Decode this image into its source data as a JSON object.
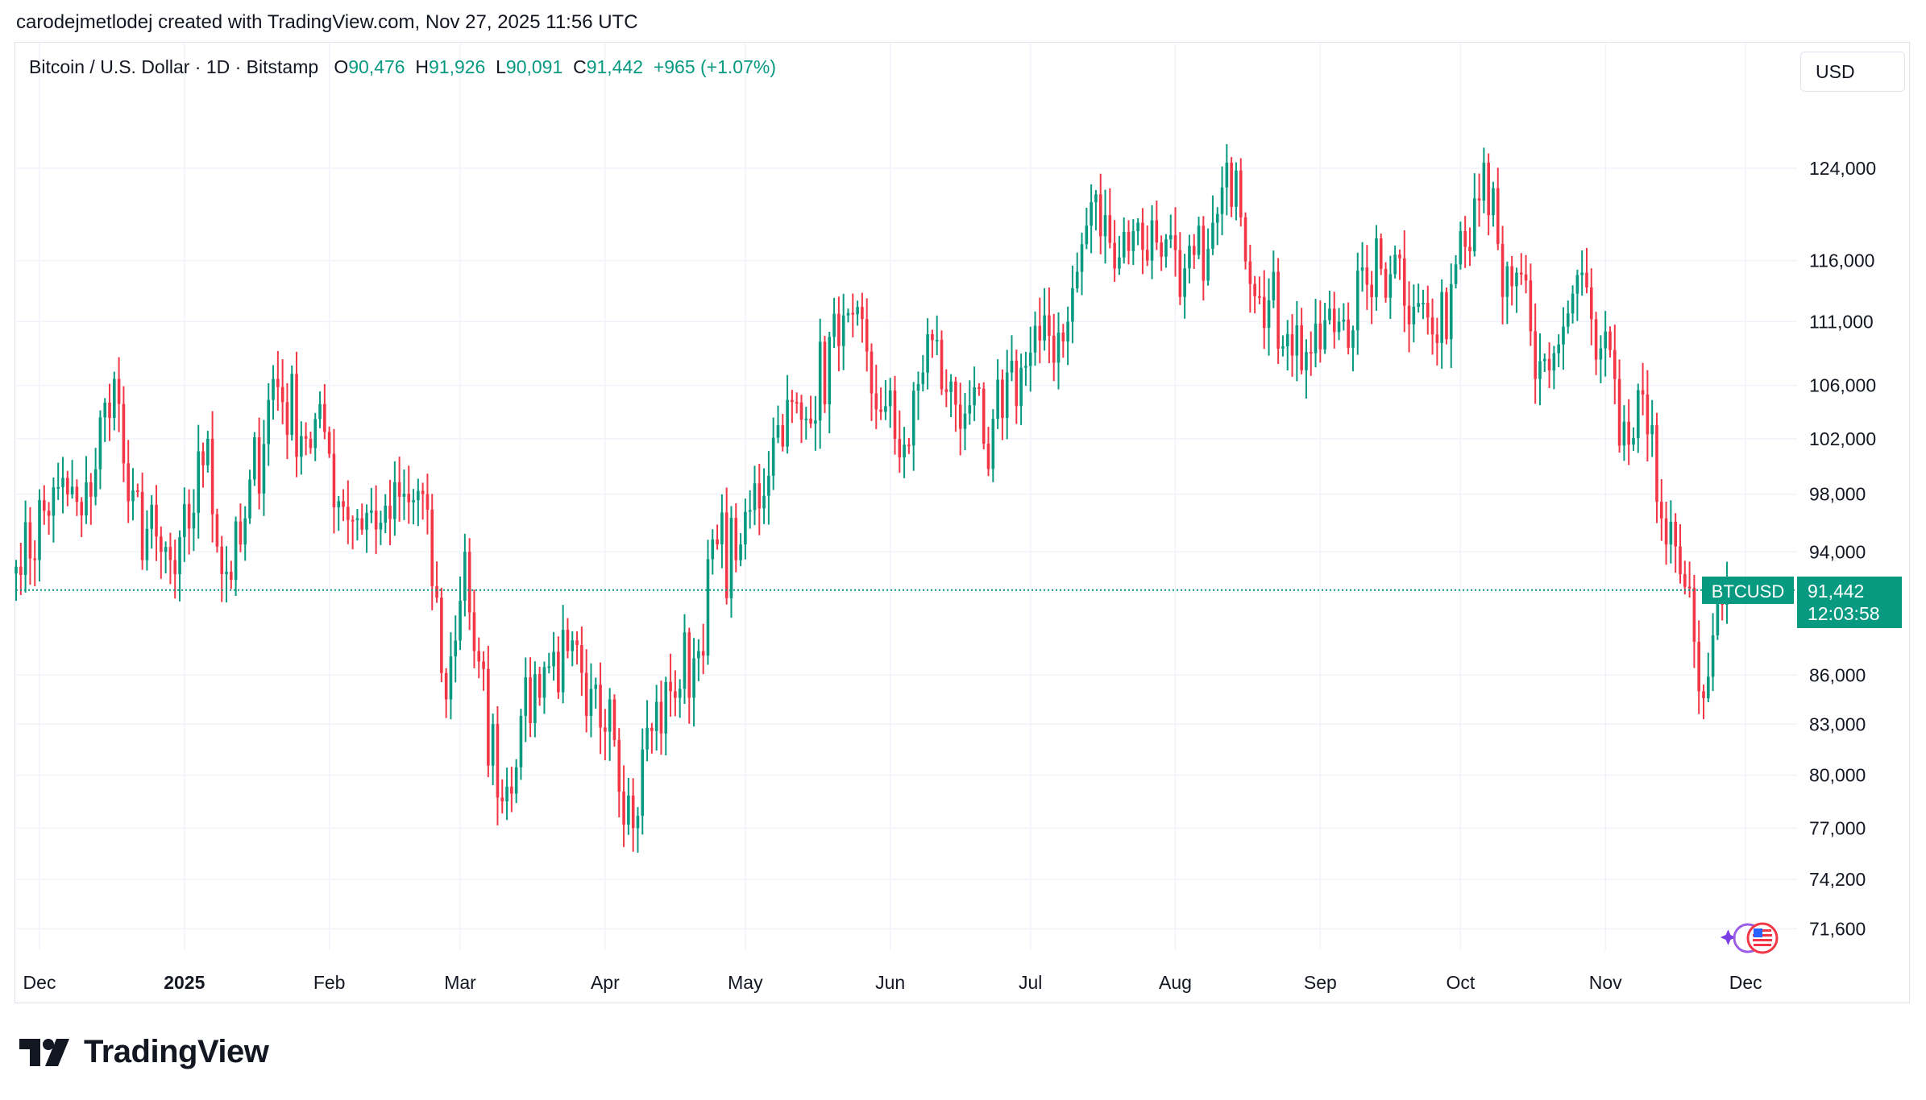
{
  "header": {
    "credit": "carodejmetlodej created with TradingView.com, Nov 27, 2025 11:56 UTC"
  },
  "legend": {
    "symbol": "Bitcoin / U.S. Dollar · 1D · Bitstamp",
    "o_label": "O",
    "o_value": "90,476",
    "h_label": "H",
    "h_value": "91,926",
    "l_label": "L",
    "l_value": "90,091",
    "c_label": "C",
    "c_value": "91,442",
    "change": "+965 (+1.07%)"
  },
  "currency_button": "USD",
  "price_tag": {
    "symbol": "BTCUSD",
    "price": "91,442",
    "countdown": "12:03:58"
  },
  "footer": {
    "brand": "TradingView"
  },
  "colors": {
    "up": "#089981",
    "down": "#f23645",
    "grid": "#f0f3fa",
    "text": "#131722"
  },
  "chart_data": {
    "type": "candlestick",
    "title": "Bitcoin / U.S. Dollar · 1D · Bitstamp",
    "scale": "log",
    "ylim": [
      70500,
      131500
    ],
    "y_ticks": [
      124000,
      116000,
      111000,
      106000,
      102000,
      98000,
      94000,
      86000,
      83000,
      80000,
      77000,
      74200,
      71600
    ],
    "y_tick_labels": [
      "124,000",
      "116,000",
      "111,000",
      "106,000",
      "102,000",
      "98,000",
      "94,000",
      "86,000",
      "83,000",
      "80,000",
      "77,000",
      "74,200",
      "71,600"
    ],
    "x_ticks": [
      {
        "label": "Dec",
        "date": "2024-12-01",
        "bold": false
      },
      {
        "label": "2025",
        "date": "2025-01-01",
        "bold": true
      },
      {
        "label": "Feb",
        "date": "2025-02-01",
        "bold": false
      },
      {
        "label": "Mar",
        "date": "2025-03-01",
        "bold": false
      },
      {
        "label": "Apr",
        "date": "2025-04-01",
        "bold": false
      },
      {
        "label": "May",
        "date": "2025-05-01",
        "bold": false
      },
      {
        "label": "Jun",
        "date": "2025-06-01",
        "bold": false
      },
      {
        "label": "Jul",
        "date": "2025-07-01",
        "bold": false
      },
      {
        "label": "Aug",
        "date": "2025-08-01",
        "bold": false
      },
      {
        "label": "Sep",
        "date": "2025-09-01",
        "bold": false
      },
      {
        "label": "Oct",
        "date": "2025-10-01",
        "bold": false
      },
      {
        "label": "Nov",
        "date": "2025-11-01",
        "bold": false
      },
      {
        "label": "Dec",
        "date": "2025-12-01",
        "bold": false
      }
    ],
    "x_range": [
      "2024-11-26",
      "2025-12-12"
    ],
    "last_price": 91442,
    "anchors": [
      [
        "2024-11-26",
        93000
      ],
      [
        "2024-12-05",
        98500
      ],
      [
        "2024-12-10",
        96500
      ],
      [
        "2024-12-17",
        106500
      ],
      [
        "2024-12-20",
        97500
      ],
      [
        "2024-12-27",
        94000
      ],
      [
        "2024-12-30",
        92500
      ],
      [
        "2025-01-06",
        102000
      ],
      [
        "2025-01-09",
        92500
      ],
      [
        "2025-01-13",
        94500
      ],
      [
        "2025-01-20",
        106500
      ],
      [
        "2025-01-27",
        102000
      ],
      [
        "2025-01-31",
        102500
      ],
      [
        "2025-02-03",
        97500
      ],
      [
        "2025-02-12",
        96000
      ],
      [
        "2025-02-21",
        98000
      ],
      [
        "2025-02-26",
        84500
      ],
      [
        "2025-03-02",
        94000
      ],
      [
        "2025-03-04",
        87500
      ],
      [
        "2025-03-10",
        78500
      ],
      [
        "2025-03-14",
        83500
      ],
      [
        "2025-03-19",
        86500
      ],
      [
        "2025-03-24",
        87500
      ],
      [
        "2025-03-28",
        83500
      ],
      [
        "2025-04-02",
        84500
      ],
      [
        "2025-04-07",
        77000
      ],
      [
        "2025-04-09",
        81500
      ],
      [
        "2025-04-15",
        85000
      ],
      [
        "2025-04-21",
        87500
      ],
      [
        "2025-04-23",
        93500
      ],
      [
        "2025-04-30",
        94500
      ],
      [
        "2025-05-08",
        103000
      ],
      [
        "2025-05-14",
        103500
      ],
      [
        "2025-05-22",
        111500
      ],
      [
        "2025-05-30",
        104000
      ],
      [
        "2025-06-05",
        101500
      ],
      [
        "2025-06-09",
        110000
      ],
      [
        "2025-06-13",
        105500
      ],
      [
        "2025-06-18",
        104500
      ],
      [
        "2025-06-22",
        99800
      ],
      [
        "2025-06-26",
        107000
      ],
      [
        "2025-06-30",
        107500
      ],
      [
        "2025-07-03",
        109500
      ],
      [
        "2025-07-09",
        111000
      ],
      [
        "2025-07-14",
        121000
      ],
      [
        "2025-07-18",
        117500
      ],
      [
        "2025-07-23",
        118500
      ],
      [
        "2025-07-30",
        117800
      ],
      [
        "2025-08-02",
        113000
      ],
      [
        "2025-08-08",
        117000
      ],
      [
        "2025-08-14",
        123800
      ],
      [
        "2025-08-19",
        113000
      ],
      [
        "2025-08-25",
        110000
      ],
      [
        "2025-08-30",
        108500
      ],
      [
        "2025-09-05",
        111000
      ],
      [
        "2025-09-11",
        114000
      ],
      [
        "2025-09-17",
        116500
      ],
      [
        "2025-09-22",
        112500
      ],
      [
        "2025-09-26",
        109300
      ],
      [
        "2025-10-01",
        118500
      ],
      [
        "2025-10-06",
        124500
      ],
      [
        "2025-10-10",
        113000
      ],
      [
        "2025-10-13",
        115000
      ],
      [
        "2025-10-17",
        106500
      ],
      [
        "2025-10-21",
        108500
      ],
      [
        "2025-10-27",
        115000
      ],
      [
        "2025-10-30",
        108000
      ],
      [
        "2025-11-03",
        106500
      ],
      [
        "2025-11-04",
        101500
      ],
      [
        "2025-11-11",
        103000
      ],
      [
        "2025-11-14",
        94500
      ],
      [
        "2025-11-17",
        92500
      ],
      [
        "2025-11-21",
        85000
      ],
      [
        "2025-11-24",
        88500
      ],
      [
        "2025-11-26",
        90476
      ],
      [
        "2025-11-27",
        91442
      ]
    ]
  }
}
